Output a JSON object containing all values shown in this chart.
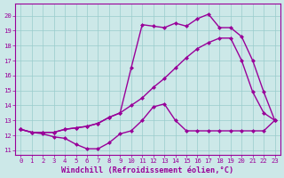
{
  "bg_color": "#cce8e8",
  "grid_color": "#99cccc",
  "line_color": "#990099",
  "markersize": 2.5,
  "linewidth": 1.0,
  "xlim": [
    -0.5,
    23.5
  ],
  "ylim": [
    10.7,
    20.8
  ],
  "xlabel": "Windchill (Refroidissement éolien,°C)",
  "xlabel_fontsize": 6.2,
  "tick_fontsize": 5.2,
  "xticks": [
    0,
    1,
    2,
    3,
    4,
    5,
    6,
    7,
    8,
    9,
    10,
    11,
    12,
    13,
    14,
    15,
    16,
    17,
    18,
    19,
    20,
    21,
    22,
    23
  ],
  "yticks": [
    11,
    12,
    13,
    14,
    15,
    16,
    17,
    18,
    19,
    20
  ],
  "curve1_x": [
    0,
    1,
    2,
    3,
    4,
    5,
    6,
    7,
    8,
    9,
    10,
    11,
    12,
    13,
    14,
    15,
    16,
    17,
    18,
    19,
    20,
    21,
    22,
    23
  ],
  "curve1_y": [
    12.4,
    12.2,
    12.1,
    11.9,
    11.8,
    11.4,
    11.1,
    11.1,
    11.5,
    12.1,
    12.3,
    13.0,
    13.9,
    14.1,
    13.0,
    12.3,
    12.3,
    12.3,
    12.3,
    12.3,
    12.3,
    12.3,
    12.3,
    13.0
  ],
  "curve2_x": [
    0,
    1,
    2,
    3,
    4,
    5,
    6,
    7,
    8,
    9,
    10,
    11,
    12,
    13,
    14,
    15,
    16,
    17,
    18,
    19,
    20,
    21,
    22,
    23
  ],
  "curve2_y": [
    12.4,
    12.2,
    12.2,
    12.2,
    12.4,
    12.5,
    12.6,
    12.8,
    13.2,
    13.5,
    14.0,
    14.5,
    15.2,
    15.8,
    16.5,
    17.2,
    17.8,
    18.2,
    18.5,
    18.5,
    17.0,
    14.9,
    13.5,
    13.0
  ],
  "curve3_x": [
    0,
    1,
    2,
    3,
    4,
    5,
    6,
    7,
    8,
    9,
    10,
    11,
    12,
    13,
    14,
    15,
    16,
    17,
    18,
    19,
    20,
    21,
    22,
    23
  ],
  "curve3_y": [
    12.4,
    12.2,
    12.2,
    12.2,
    12.4,
    12.5,
    12.6,
    12.8,
    13.2,
    13.5,
    16.5,
    19.4,
    19.3,
    19.2,
    19.5,
    19.3,
    19.8,
    20.1,
    19.2,
    19.2,
    18.6,
    17.0,
    14.9,
    13.0
  ]
}
